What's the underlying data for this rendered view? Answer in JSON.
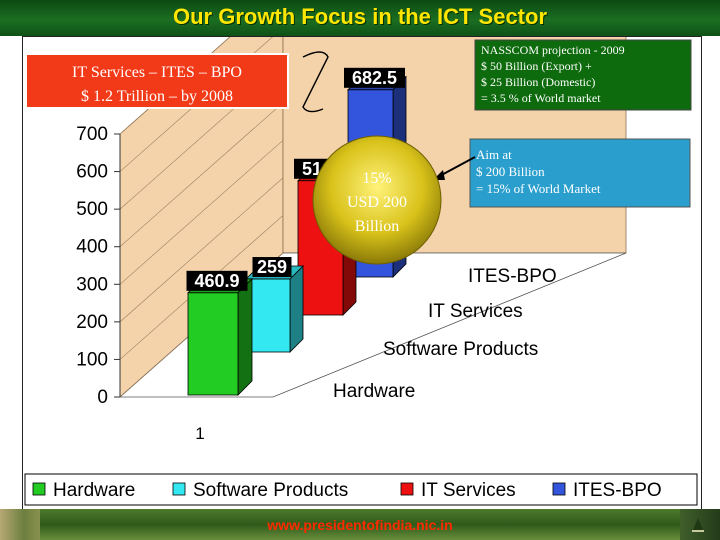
{
  "slide": {
    "title": "Our Growth Focus in the ICT Sector",
    "footer_url": "www.presidentofindia.nic.in"
  },
  "callouts": {
    "it_services_box": [
      "IT Services – ITES – BPO",
      "$ 1.2 Trillion – by 2008"
    ],
    "nasscom_box": [
      "NASSCOM  projection - 2009",
      "$ 50 Billion (Export) +",
      "$ 25 Billion (Domestic)",
      "= 3.5 % of World market"
    ],
    "aim_box": [
      "Aim at",
      "$ 200 Billion",
      "= 15% of World Market"
    ],
    "circle": [
      "15%",
      "USD 200",
      "Billion"
    ]
  },
  "chart_data": {
    "type": "bar",
    "categories": [
      "1"
    ],
    "series": [
      {
        "name": "Hardware",
        "values": [
          460.9
        ],
        "color": "#22cc22"
      },
      {
        "name": "Software Products",
        "values": [
          259
        ],
        "color": "#33e8f0"
      },
      {
        "name": "IT Services",
        "values": [
          510.4
        ],
        "color": "#ee1111"
      },
      {
        "name": "ITES-BPO",
        "values": [
          682.5
        ],
        "color": "#3355dd"
      }
    ],
    "data_labels": [
      "460.9",
      "259",
      "510.4",
      "682.5"
    ],
    "yticks": [
      0,
      100,
      200,
      300,
      400,
      500,
      600,
      700
    ],
    "ylim": [
      0,
      700
    ],
    "depth_labels": [
      "Hardware",
      "Software Products",
      "IT Services",
      "ITES-BPO"
    ],
    "legend_position": "bottom",
    "wall_color": "#f4d3aa"
  }
}
